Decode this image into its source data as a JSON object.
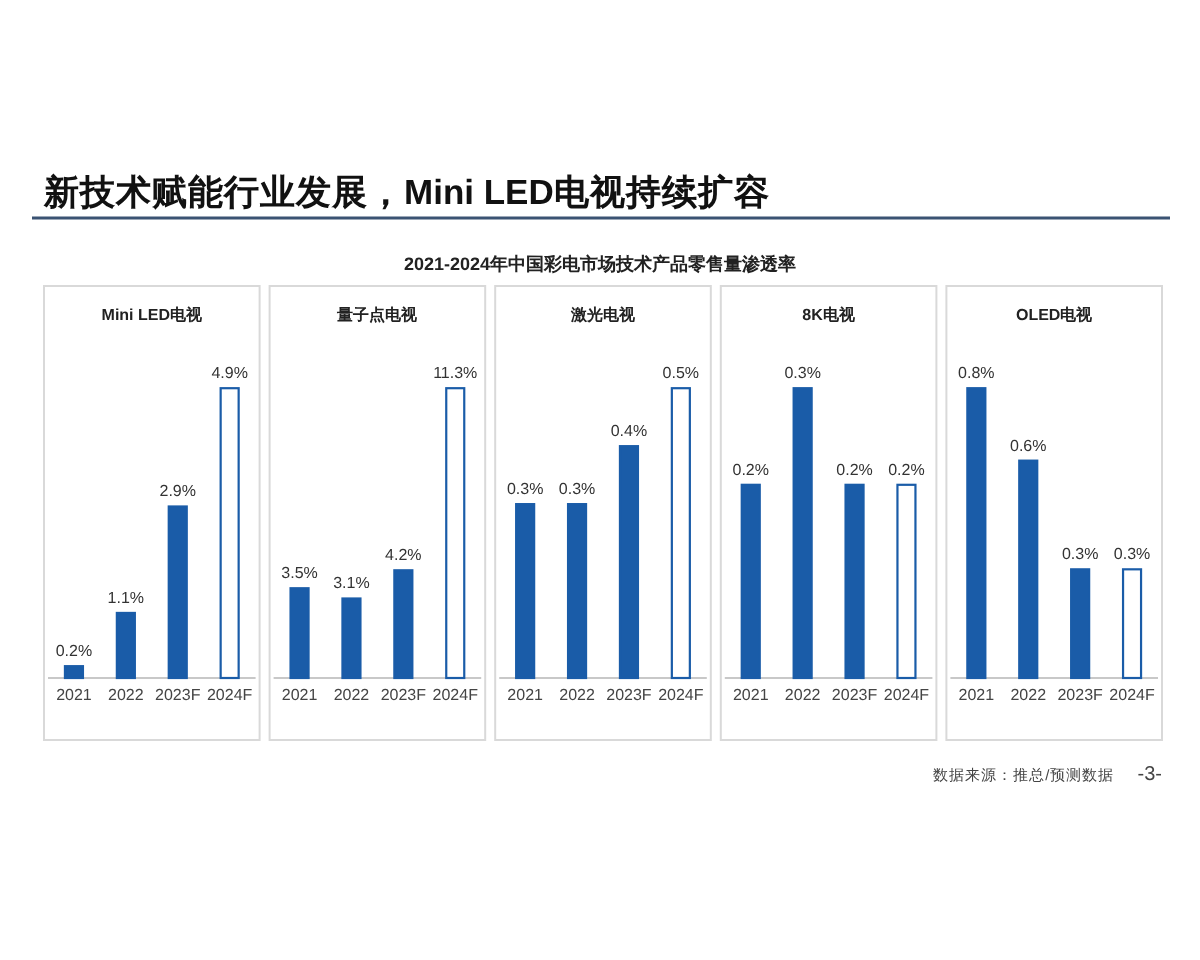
{
  "chart_data": [
    {
      "type": "other",
      "title": "新技术赋能行业发展，Mini LED电视持续扩容",
      "subtitle": "2021-2024年中国彩电市场技术产品零售量渗透率"
    },
    {
      "type": "bar",
      "title": "Mini LED电视",
      "categories": [
        "2021",
        "2022",
        "2023F",
        "2024F"
      ],
      "values": [
        0.2,
        1.1,
        2.9,
        4.9
      ],
      "value_labels": [
        "0.2%",
        "1.1%",
        "2.9%",
        "4.9%"
      ],
      "color": "#1a5ca8",
      "colors": [
        "#1a5ca8",
        "#1a5ca8",
        "#1a5ca8",
        "#ffffff"
      ]
    },
    {
      "type": "bar",
      "title": "量子点电视",
      "categories": [
        "2021",
        "2022",
        "2023F",
        "2024F"
      ],
      "values": [
        3.5,
        3.1,
        4.2,
        11.3
      ],
      "value_labels": [
        "3.5%",
        "3.1%",
        "4.2%",
        "11.3%"
      ],
      "color": "#1a5ca8",
      "colors": [
        "#1a5ca8",
        "#1a5ca8",
        "#1a5ca8",
        "#ffffff"
      ]
    },
    {
      "type": "bar",
      "title": "激光电视",
      "categories": [
        "2021",
        "2022",
        "2023F",
        "2024F"
      ],
      "values": [
        0.3,
        0.3,
        0.4,
        0.5
      ],
      "value_labels": [
        "0.3%",
        "0.3%",
        "0.4%",
        "0.5%"
      ],
      "color": "#1a5ca8",
      "colors": [
        "#1a5ca8",
        "#1a5ca8",
        "#1a5ca8",
        "#ffffff"
      ]
    },
    {
      "type": "bar",
      "title": "8K电视",
      "categories": [
        "2021",
        "2022",
        "2023F",
        "2024F"
      ],
      "values": [
        0.2,
        0.3,
        0.2,
        0.2
      ],
      "value_labels": [
        "0.2%",
        "0.3%",
        "0.2%",
        "0.2%"
      ],
      "color": "#1a5ca8",
      "colors": [
        "#1a5ca8",
        "#1a5ca8",
        "#1a5ca8",
        "#ffffff"
      ]
    },
    {
      "type": "bar",
      "title": "OLED电视",
      "categories": [
        "2021",
        "2022",
        "2023F",
        "2024F"
      ],
      "values": [
        0.8,
        0.6,
        0.3,
        0.3
      ],
      "value_labels": [
        "0.8%",
        "0.6%",
        "0.3%",
        "0.3%"
      ],
      "color": "#1a5ca8",
      "colors": [
        "#1a5ca8",
        "#1a5ca8",
        "#1a5ca8",
        "#ffffff"
      ]
    },
    {
      "type": "other",
      "annotations": [
        "数据来源：推总/预测数据",
        "-3-"
      ]
    }
  ]
}
